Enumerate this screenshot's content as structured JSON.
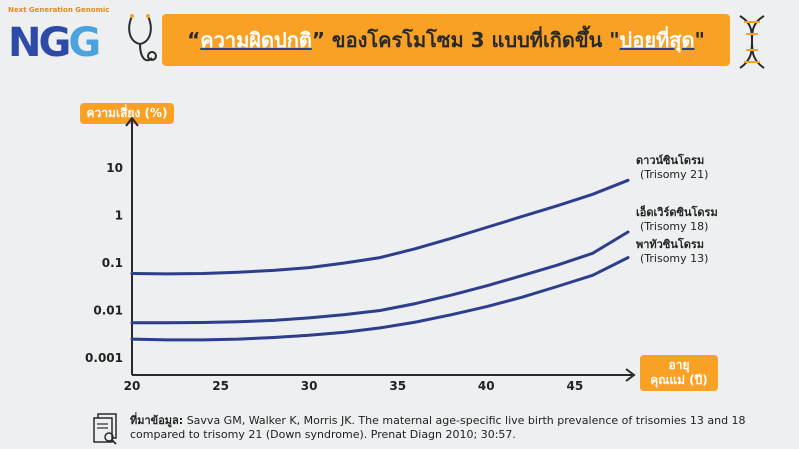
{
  "logo": {
    "tagline": "Next Generation Genomic",
    "mark_a": "NG",
    "mark_b": "G"
  },
  "title": {
    "p1": "“",
    "h1": "ความผิดปกติ",
    "p2": "” ของโครโมโซม ",
    "num": "3",
    "p3": " แบบที่เกิดขึ้น \"",
    "h2": "บ่อยที่สุด",
    "p4": "\""
  },
  "chart_data": {
    "type": "line",
    "title": "",
    "ylabel": "ความเสี่ยง (%)",
    "xlabel_line1": "อายุ",
    "xlabel_line2": "คุณแม่ (ปี)",
    "yscale": "log",
    "xlim": [
      20,
      48
    ],
    "ylim": [
      0.001,
      10
    ],
    "x_ticks": [
      "20",
      "25",
      "30",
      "35",
      "40",
      "45"
    ],
    "y_ticks": [
      "10",
      "1",
      "0.1",
      "0.01",
      "0.001"
    ],
    "x": [
      20,
      22,
      24,
      26,
      28,
      30,
      32,
      34,
      36,
      38,
      40,
      42,
      44,
      46,
      48
    ],
    "series": [
      {
        "name": "ดาวน์ซินโดรม",
        "subname": "(Trisomy 21)",
        "values": [
          0.06,
          0.059,
          0.06,
          0.064,
          0.07,
          0.08,
          0.1,
          0.13,
          0.2,
          0.33,
          0.56,
          0.95,
          1.6,
          2.8,
          5.5
        ]
      },
      {
        "name": "เอ็ดเวิร์ดซินโดรม",
        "subname": "(Trisomy 18)",
        "values": [
          0.0055,
          0.0055,
          0.0056,
          0.0058,
          0.0062,
          0.007,
          0.0082,
          0.01,
          0.014,
          0.021,
          0.033,
          0.054,
          0.09,
          0.16,
          0.45
        ]
      },
      {
        "name": "พาทัวซินโดรม",
        "subname": "(Trisomy 13)",
        "values": [
          0.0025,
          0.0024,
          0.0024,
          0.0025,
          0.0027,
          0.003,
          0.0035,
          0.0043,
          0.0057,
          0.0081,
          0.012,
          0.019,
          0.032,
          0.055,
          0.13
        ]
      }
    ]
  },
  "reference": {
    "label": "ที่มาข้อมูล:",
    "text": " Savva GM, Walker K, Morris JK. The maternal age-specific live birth prevalence of trisomies 13 and 18 compared to trisomy 21 (Down syndrome). Prenat Diagn 2010; 30:57."
  }
}
